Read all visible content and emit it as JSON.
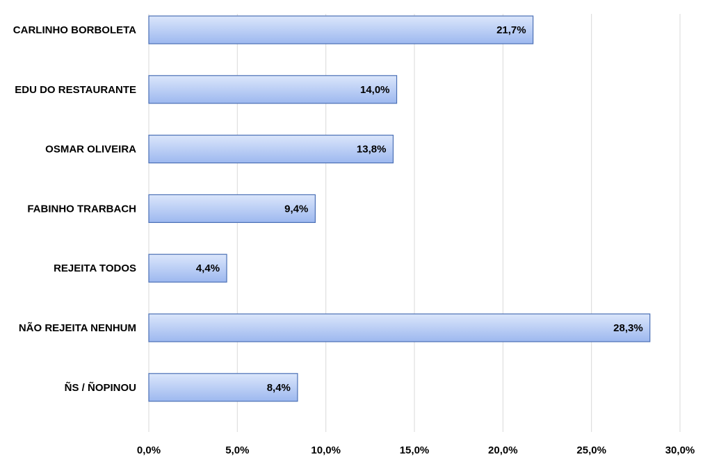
{
  "chart_data": {
    "type": "bar",
    "orientation": "horizontal",
    "categories": [
      "CARLINHO BORBOLETA",
      "EDU DO RESTAURANTE",
      "OSMAR OLIVEIRA",
      "FABINHO TRARBACH",
      "REJEITA TODOS",
      "NÃO REJEITA NENHUM",
      "ÑS / ÑOPINOU"
    ],
    "values": [
      21.7,
      14.0,
      13.8,
      9.4,
      4.4,
      28.3,
      8.4
    ],
    "value_labels": [
      "21,7%",
      "14,0%",
      "13,8%",
      "9,4%",
      "4,4%",
      "28,3%",
      "8,4%"
    ],
    "xlim": [
      0,
      30
    ],
    "xticks": [
      0,
      5,
      10,
      15,
      20,
      25,
      30
    ],
    "xtick_labels": [
      "0,0%",
      "5,0%",
      "10,0%",
      "15,0%",
      "20,0%",
      "25,0%",
      "30,0%"
    ],
    "title": "",
    "xlabel": "",
    "ylabel": "",
    "grid": "vertical",
    "legend": "none",
    "colors": {
      "bar_fill_top": "#dbe6fb",
      "bar_fill_bottom": "#9db8ef",
      "bar_stroke": "#4a6fb5",
      "grid": "#d9d9d9"
    }
  }
}
